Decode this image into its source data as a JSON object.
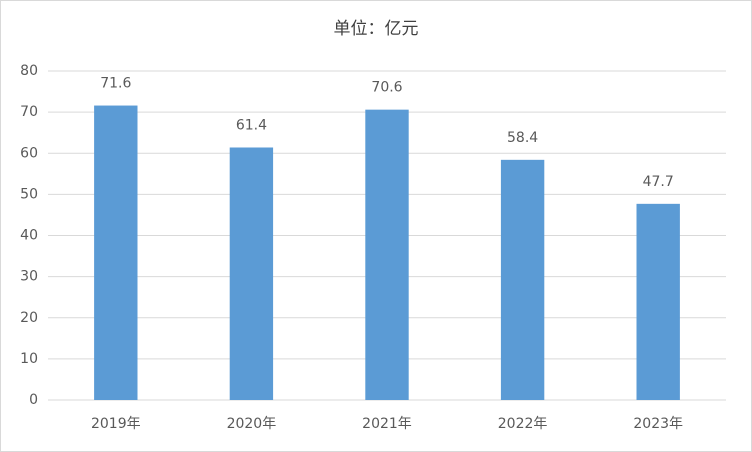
{
  "chart_data": {
    "type": "bar",
    "title": "单位：亿元",
    "categories": [
      "2019年",
      "2020年",
      "2021年",
      "2022年",
      "2023年"
    ],
    "values": [
      71.6,
      61.4,
      70.6,
      58.4,
      47.7
    ],
    "color": "#5b9bd5",
    "ylim": [
      0,
      80
    ],
    "yticks": [
      0,
      10,
      20,
      30,
      40,
      50,
      60,
      70,
      80
    ],
    "grid": true
  }
}
